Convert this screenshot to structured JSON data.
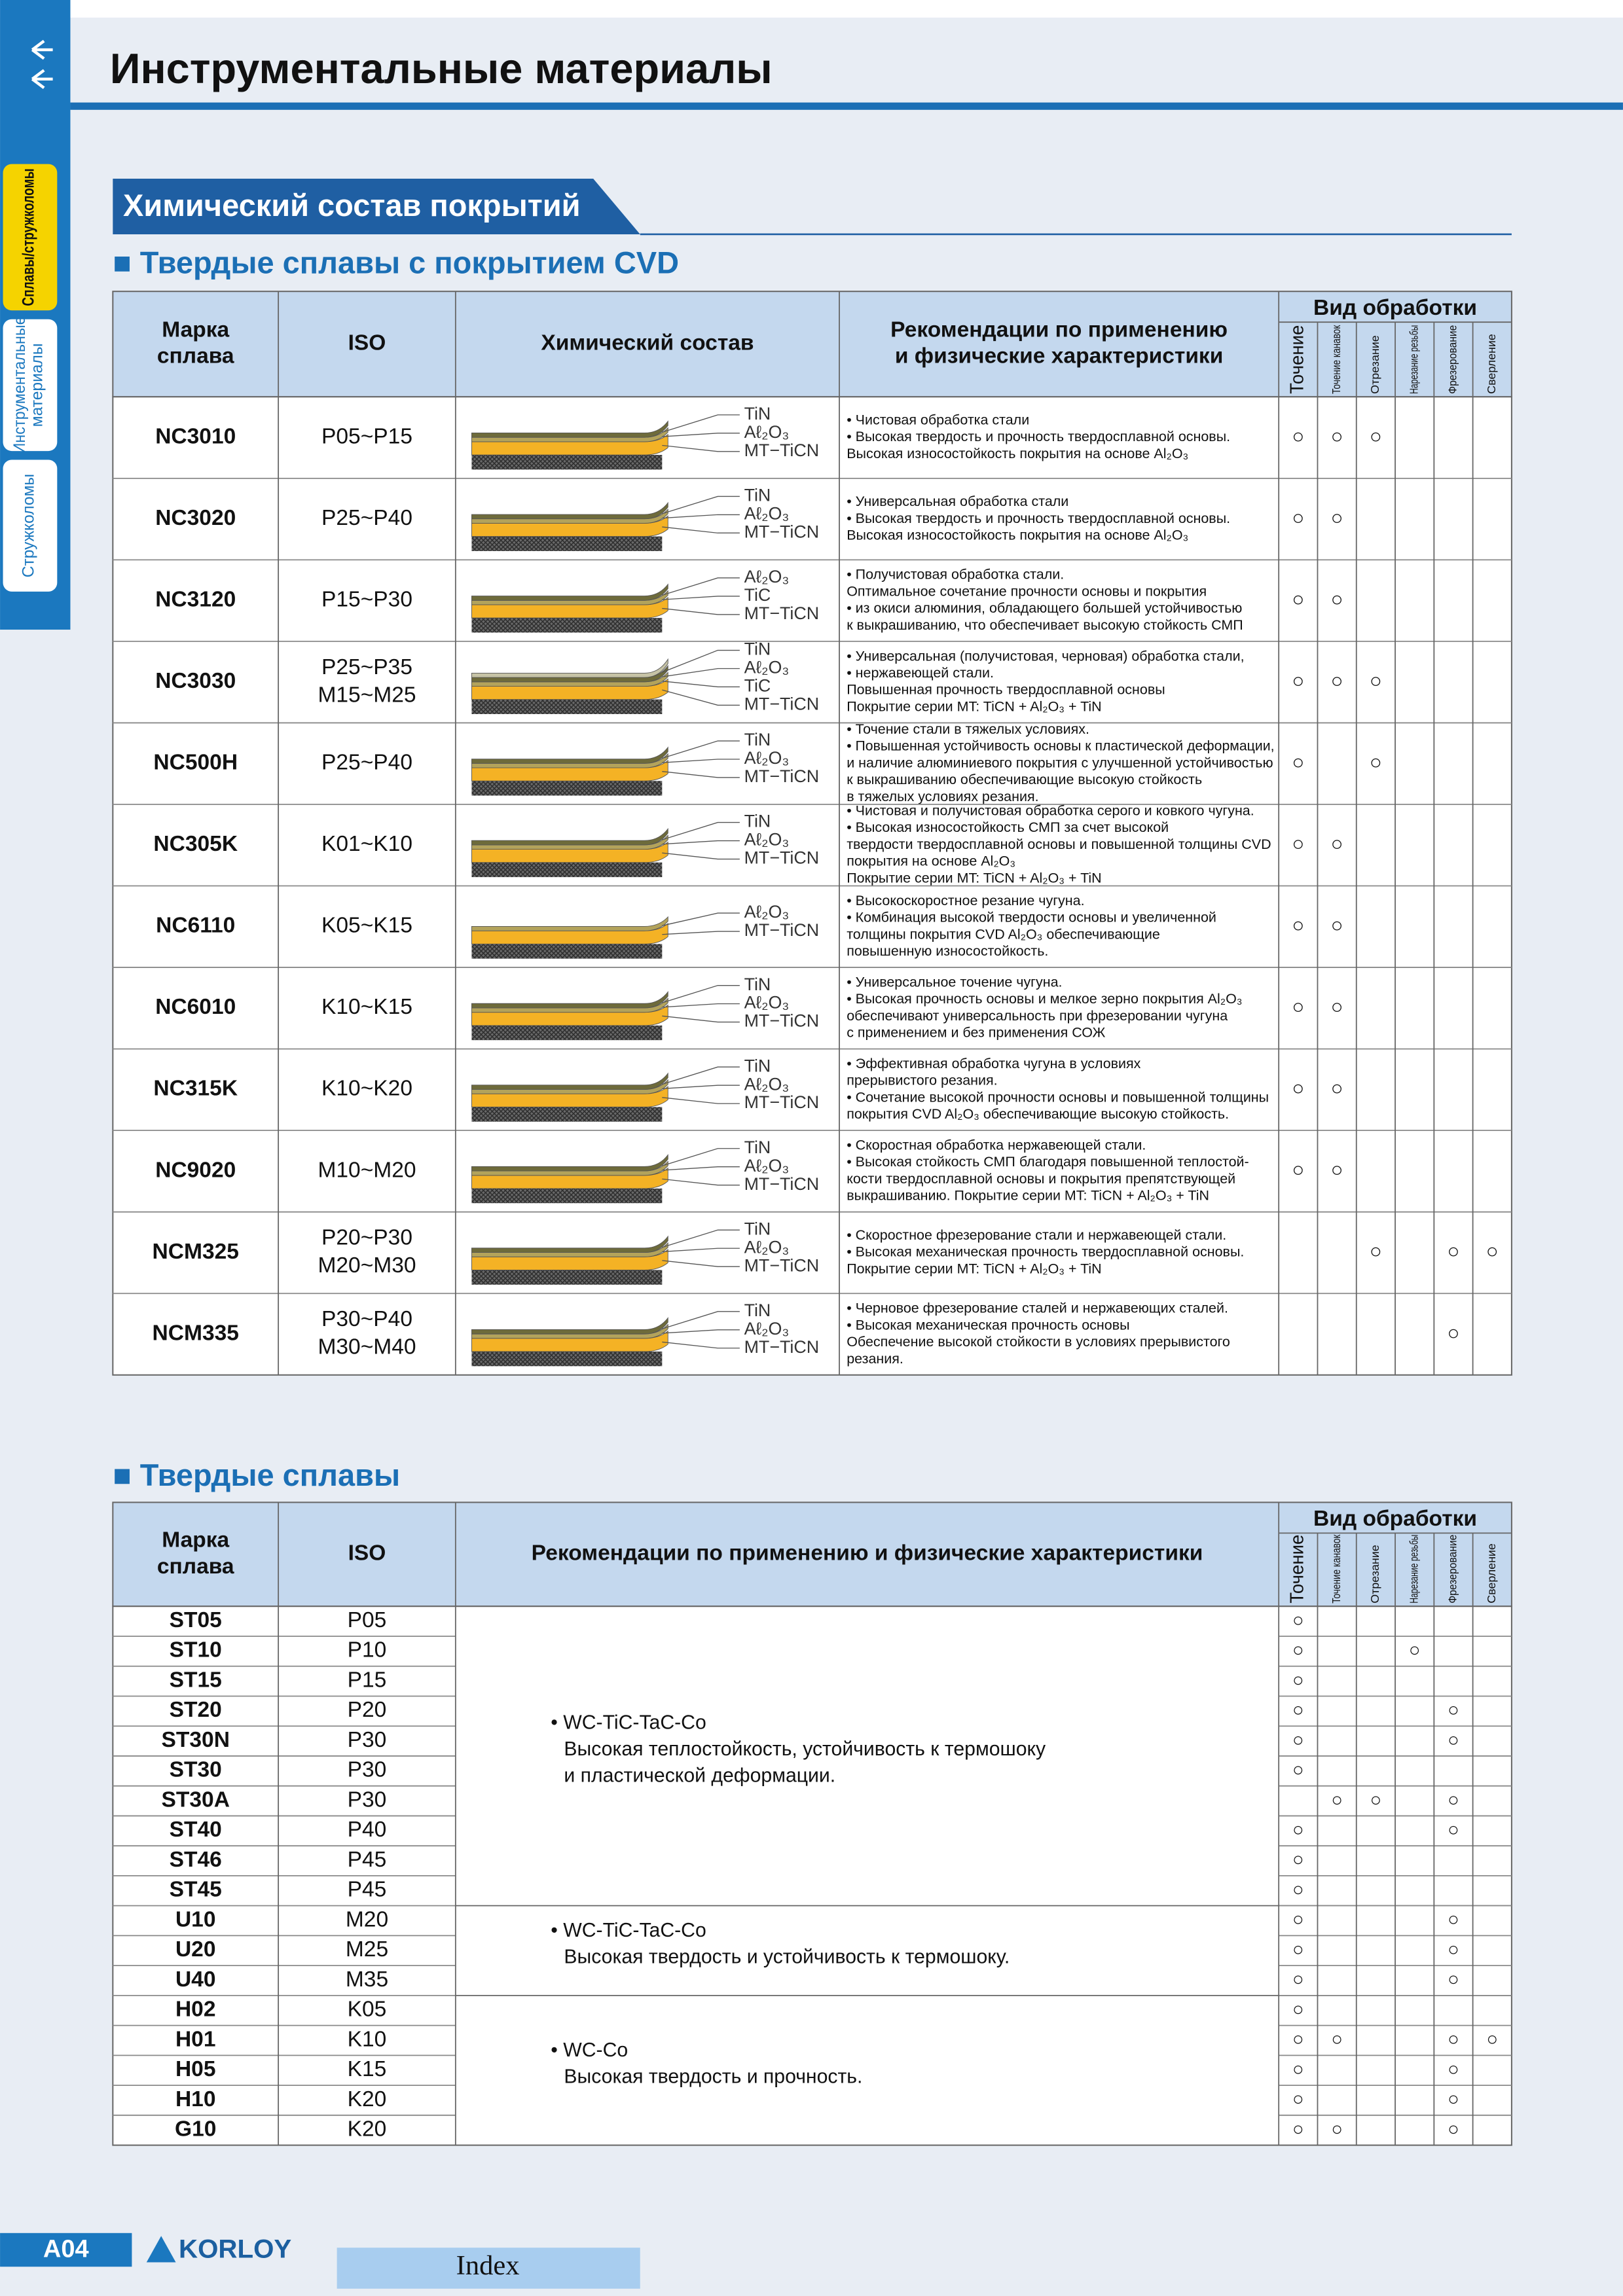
{
  "header": {
    "title": "Инструментальные материалы"
  },
  "sidebar": {
    "tabs": [
      [
        "Сплавы/стружколомы"
      ],
      [
        "Инструментальные",
        "материалы"
      ],
      [
        "Стружколомы"
      ]
    ]
  },
  "section": {
    "title": "Химический состав покрытий"
  },
  "cvd": {
    "heading": "■ Твердые сплавы с покрытием CVD",
    "header": {
      "grade": [
        "Марка",
        "сплава"
      ],
      "iso": "ISO",
      "composition": "Химический состав",
      "recommendations": [
        "Рекомендации по применению",
        "и физические характеристики"
      ],
      "operations": "Вид обработки",
      "ops": [
        "Точение",
        "Точение канавок",
        "Отрезание",
        "Нарезание резьбы",
        "Фрезерование",
        "Сверление"
      ]
    },
    "rows": [
      {
        "grade": "NC3010",
        "iso": [
          "P05~P15"
        ],
        "layers": [
          "TiN",
          "Aℓ₂O₃",
          "MT−TiCN"
        ],
        "notes": [
          "•  Чистовая обработка стали",
          "•  Высокая твердость и прочность твердосплавной основы.",
          "   Высокая износостойкость покрытия на основе Al₂O₃"
        ],
        "marks": [
          "○",
          "○",
          "○",
          null,
          null,
          null
        ]
      },
      {
        "grade": "NC3020",
        "iso": [
          "P25~P40"
        ],
        "layers": [
          "TiN",
          "Aℓ₂O₃",
          "MT−TiCN"
        ],
        "notes": [
          "• Универсальная обработка стали",
          "• Высокая твердость и прочность твердосплавной основы.",
          "  Высокая износостойкость покрытия на основе Al₂O₃"
        ],
        "marks": [
          "○",
          "○",
          null,
          null,
          null,
          null
        ]
      },
      {
        "grade": "NC3120",
        "iso": [
          "P15~P30"
        ],
        "layers": [
          "Aℓ₂O₃",
          "TiC",
          "MT−TiCN"
        ],
        "notes": [
          "• Получистовая обработка стали.",
          "  Оптимальное сочетание прочности основы и покрытия",
          "• из окиси алюминия, обладающего большей устойчивостью",
          "  к выкрашиванию, что обеспечивает высокую стойкость СМП"
        ],
        "marks": [
          "○",
          "○",
          null,
          null,
          null,
          null
        ]
      },
      {
        "grade": "NC3030",
        "iso": [
          "P25~P35",
          "M15~M25"
        ],
        "layers": [
          "TiN",
          "Aℓ₂O₃",
          "TiC",
          "MT−TiCN"
        ],
        "notes": [
          "• Универсальная (получистовая, черновая) обработка стали,",
          "• нержавеющей стали.",
          "  Повышенная прочность твердосплавной основы",
          "  Покрытие серии MT: TiCN + Al₂O₃ + TiN"
        ],
        "marks": [
          "○",
          "○",
          "○",
          null,
          null,
          null
        ]
      },
      {
        "grade": "NC500H",
        "iso": [
          "P25~P40"
        ],
        "layers": [
          "TiN",
          "Aℓ₂O₃",
          "MT−TiCN"
        ],
        "notes": [
          "• Точение стали в тяжелых условиях.",
          "• Повышенная устойчивость основы к пластической деформации,",
          "  и наличие алюминиевого покрытия с улучшенной устойчивостью",
          "  к выкрашиванию обеспечивающие высокую стойкость",
          "  в тяжелых условиях резания."
        ],
        "marks": [
          "○",
          null,
          "○",
          null,
          null,
          null
        ]
      },
      {
        "grade": "NC305K",
        "iso": [
          "K01~K10"
        ],
        "layers": [
          "TiN",
          "Aℓ₂O₃",
          "MT−TiCN"
        ],
        "notes": [
          "• Чистовая  и получистовая обработка серого и ковкого чугуна.",
          "• Высокая износостойкость  СМП за счет высокой",
          "  твердости твердосплавной основы и повышенной толщины CVD",
          "  покрытия на основе Al₂O₃",
          "  Покрытие серии MT: TiCN + Al₂O₃ + TiN"
        ],
        "marks": [
          "○",
          "○",
          null,
          null,
          null,
          null
        ]
      },
      {
        "grade": "NC6110",
        "iso": [
          "K05~K15"
        ],
        "layers": [
          "Aℓ₂O₃",
          "MT−TiCN"
        ],
        "notes": [
          "• Высокоскоростное резание чугуна.",
          "• Комбинация высокой твердости основы и увеличенной",
          "  толщины покрытия CVD Al₂O₃ обеспечивающие",
          "  повышенную износостойкость."
        ],
        "marks": [
          "○",
          "○",
          null,
          null,
          null,
          null
        ]
      },
      {
        "grade": "NC6010",
        "iso": [
          "K10~K15"
        ],
        "layers": [
          "TiN",
          "Aℓ₂O₃",
          "MT−TiCN"
        ],
        "notes": [
          "•  Универсальное точение чугуна.",
          "•  Высокая прочность основы и мелкое зерно покрытия Al₂O₃",
          "   обеспечивают универсальность при фрезеровании чугуна",
          "   с применением и без применения СОЖ"
        ],
        "marks": [
          "○",
          "○",
          null,
          null,
          null,
          null
        ]
      },
      {
        "grade": "NC315K",
        "iso": [
          "K10~K20"
        ],
        "layers": [
          "TiN",
          "Aℓ₂O₃",
          "MT−TiCN"
        ],
        "notes": [
          "•  Эффективная обработка чугуна в условиях",
          "   прерывистого резания.",
          "•  Сочетание высокой прочности основы и повышенной толщины",
          "   покрытия CVD Al₂O₃ обеспечивающие высокую стойкость."
        ],
        "marks": [
          "○",
          "○",
          null,
          null,
          null,
          null
        ]
      },
      {
        "grade": "NC9020",
        "iso": [
          "M10~M20"
        ],
        "layers": [
          "TiN",
          "Aℓ₂O₃",
          "MT−TiCN"
        ],
        "notes": [
          "•  Скоростная обработка нержавеющей стали.",
          "•  Высокая стойкость СМП благодаря повышенной теплостой-",
          "   кости твердосплавной основы и покрытия  препятствующей",
          "   выкрашиванию. Покрытие серии MT: TiCN + Al₂O₃ + TiN"
        ],
        "marks": [
          "○",
          "○",
          null,
          null,
          null,
          null
        ]
      },
      {
        "grade": "NCM325",
        "iso": [
          "P20~P30",
          "M20~M30"
        ],
        "layers": [
          "TiN",
          "Aℓ₂O₃",
          "MT−TiCN"
        ],
        "notes": [
          "•  Скоростное фрезерование стали и нержавеющей стали.",
          "•  Высокая механическая прочность твердосплавной основы.",
          "   Покрытие серии MT: TiCN + Al₂O₃ + TiN"
        ],
        "marks": [
          null,
          null,
          "○",
          null,
          "○",
          "○"
        ]
      },
      {
        "grade": "NCM335",
        "iso": [
          "P30~P40",
          "M30~M40"
        ],
        "layers": [
          "TiN",
          "Aℓ₂O₃",
          "MT−TiCN"
        ],
        "notes": [
          "• Черновое фрезерование  сталей и нержавеющих сталей.",
          "• Высокая механическая прочность основы",
          "  Обеспечение высокой стойкости в условиях прерывистого",
          "  резания."
        ],
        "marks": [
          null,
          null,
          null,
          null,
          "○",
          null
        ]
      }
    ]
  },
  "carbide": {
    "heading": "■ Твердые сплавы",
    "header": {
      "grade": [
        "Марка",
        "сплава"
      ],
      "iso": "ISO",
      "recommendations": "Рекомендации по применению и физические характеристики",
      "operations": "Вид обработки",
      "ops": [
        "Точение",
        "Точение канавок",
        "Отрезание",
        "Нарезание резьбы",
        "Фрезерование",
        "Сверление"
      ]
    },
    "groups": [
      {
        "notes": [
          "• WC-TiC-TaC-Co",
          "Высокая теплостойкость, устойчивость к термошоку",
          "и пластической деформации."
        ],
        "rows": [
          {
            "grade": "ST05",
            "iso": "P05",
            "marks": [
              "○",
              null,
              null,
              null,
              null,
              null
            ]
          },
          {
            "grade": "ST10",
            "iso": "P10",
            "marks": [
              "○",
              null,
              null,
              "○",
              null,
              null
            ]
          },
          {
            "grade": "ST15",
            "iso": "P15",
            "marks": [
              "○",
              null,
              null,
              null,
              null,
              null
            ]
          },
          {
            "grade": "ST20",
            "iso": "P20",
            "marks": [
              "○",
              null,
              null,
              null,
              "○",
              null
            ]
          },
          {
            "grade": "ST30N",
            "iso": "P30",
            "marks": [
              "○",
              null,
              null,
              null,
              "○",
              null
            ]
          },
          {
            "grade": "ST30",
            "iso": "P30",
            "marks": [
              "○",
              null,
              null,
              null,
              null,
              null
            ]
          },
          {
            "grade": "ST30A",
            "iso": "P30",
            "marks": [
              null,
              "○",
              "○",
              null,
              "○",
              null
            ]
          },
          {
            "grade": "ST40",
            "iso": "P40",
            "marks": [
              "○",
              null,
              null,
              null,
              "○",
              null
            ]
          },
          {
            "grade": "ST46",
            "iso": "P45",
            "marks": [
              "○",
              null,
              null,
              null,
              null,
              null
            ]
          },
          {
            "grade": "ST45",
            "iso": "P45",
            "marks": [
              "○",
              null,
              null,
              null,
              null,
              null
            ]
          }
        ]
      },
      {
        "notes": [
          "• WC-TiC-TaC-Co",
          "Высокая твердость и устойчивость к термошоку."
        ],
        "rows": [
          {
            "grade": "U10",
            "iso": "M20",
            "marks": [
              "○",
              null,
              null,
              null,
              "○",
              null
            ]
          },
          {
            "grade": "U20",
            "iso": "M25",
            "marks": [
              "○",
              null,
              null,
              null,
              "○",
              null
            ]
          },
          {
            "grade": "U40",
            "iso": "M35",
            "marks": [
              "○",
              null,
              null,
              null,
              "○",
              null
            ]
          }
        ]
      },
      {
        "notes": [
          "• WC-Co",
          "Высокая твердость и прочность."
        ],
        "rows": [
          {
            "grade": "H02",
            "iso": "K05",
            "marks": [
              "○",
              null,
              null,
              null,
              null,
              null
            ]
          },
          {
            "grade": "H01",
            "iso": "K10",
            "marks": [
              "○",
              "○",
              null,
              null,
              "○",
              "○"
            ]
          },
          {
            "grade": "H05",
            "iso": "K15",
            "marks": [
              "○",
              null,
              null,
              null,
              "○",
              null
            ]
          },
          {
            "grade": "H10",
            "iso": "K20",
            "marks": [
              "○",
              null,
              null,
              null,
              "○",
              null
            ]
          },
          {
            "grade": "G10",
            "iso": "K20",
            "marks": [
              "○",
              "○",
              null,
              null,
              "○",
              null
            ]
          }
        ]
      }
    ]
  },
  "footer": {
    "page": "A04",
    "brand": "KORLOY",
    "index": "Index"
  }
}
